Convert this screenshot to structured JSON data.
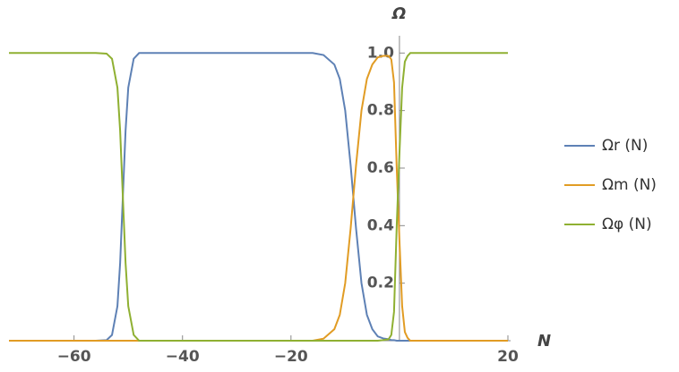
{
  "chart_data": {
    "type": "line",
    "x_label": "N",
    "y_label": "Ω",
    "x": [
      -72,
      -60,
      -56,
      -54,
      -53,
      -52,
      -51.5,
      -51,
      -50.5,
      -50,
      -49,
      -48,
      -46,
      -40,
      -30,
      -20,
      -16,
      -14,
      -12,
      -11,
      -10,
      -9,
      -8,
      -7,
      -6,
      -5,
      -4,
      -3,
      -2,
      -1.5,
      -1,
      -0.5,
      0,
      0.5,
      1,
      1.5,
      2,
      3,
      5,
      10,
      20
    ],
    "series": [
      {
        "name": "Ωr (N)",
        "color": "#5e81b5",
        "values": [
          0,
          0,
          0,
          0.002,
          0.02,
          0.12,
          0.27,
          0.5,
          0.73,
          0.88,
          0.98,
          1,
          1,
          1,
          1,
          1,
          1,
          0.993,
          0.96,
          0.91,
          0.8,
          0.61,
          0.39,
          0.2,
          0.09,
          0.04,
          0.015,
          0.008,
          0.005,
          0.002,
          0.002,
          0,
          0,
          0,
          0,
          0,
          0,
          0,
          0,
          0,
          0
        ]
      },
      {
        "name": "Ωm (N)",
        "color": "#e19c24",
        "values": [
          0,
          0,
          0,
          0,
          0,
          0,
          0,
          0,
          0,
          0,
          0,
          0,
          0,
          0,
          0,
          0,
          0,
          0.007,
          0.04,
          0.09,
          0.2,
          0.39,
          0.61,
          0.8,
          0.91,
          0.96,
          0.985,
          0.99,
          0.99,
          0.978,
          0.898,
          0.6,
          0.35,
          0.12,
          0.03,
          0.01,
          0,
          0,
          0,
          0,
          0
        ]
      },
      {
        "name": "Ωφ (N)",
        "color": "#8fb032",
        "values": [
          1,
          1,
          1,
          0.998,
          0.98,
          0.88,
          0.73,
          0.5,
          0.27,
          0.12,
          0.02,
          0,
          0,
          0,
          0,
          0,
          0,
          0,
          0,
          0,
          0,
          0,
          0,
          0,
          0,
          0,
          0,
          0.002,
          0.005,
          0.02,
          0.1,
          0.4,
          0.65,
          0.88,
          0.97,
          0.99,
          1,
          1,
          1,
          1,
          1
        ]
      }
    ],
    "xlim": [
      -72,
      20
    ],
    "ylim": [
      0,
      1.06
    ],
    "xticks": [
      {
        "value": -60,
        "label": "−60"
      },
      {
        "value": -40,
        "label": "−40"
      },
      {
        "value": -20,
        "label": "−20"
      },
      20
    ],
    "yticks": [
      0.2,
      0.4,
      0.6,
      0.8,
      {
        "value": 1,
        "label": "1.0"
      }
    ]
  }
}
